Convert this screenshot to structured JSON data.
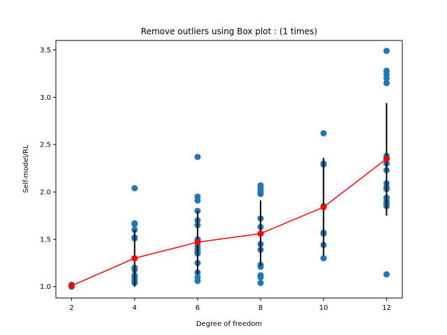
{
  "chart_data": {
    "type": "scatter",
    "title": "Remove outliers using Box plot : (1 times)",
    "xlabel": "Degree of freedom",
    "ylabel": "Self-model/RL",
    "xlim": [
      1.5,
      12.5
    ],
    "ylim": [
      0.88,
      3.6
    ],
    "x_ticks": [
      2,
      4,
      6,
      8,
      10,
      12
    ],
    "y_ticks": [
      1.0,
      1.5,
      2.0,
      2.5,
      3.0,
      3.5
    ],
    "grid": false,
    "scatter": [
      {
        "x": 2,
        "values": [
          1.0,
          1.01,
          1.02
        ]
      },
      {
        "x": 4,
        "values": [
          1.04,
          1.06,
          1.08,
          1.1,
          1.12,
          1.18,
          1.2,
          1.3,
          1.51,
          1.52,
          1.6,
          1.66,
          1.67,
          2.04
        ]
      },
      {
        "x": 6,
        "values": [
          1.06,
          1.1,
          1.15,
          1.25,
          1.35,
          1.37,
          1.4,
          1.43,
          1.47,
          1.5,
          1.65,
          1.7,
          1.8,
          1.91,
          1.95,
          2.37
        ]
      },
      {
        "x": 8,
        "values": [
          1.04,
          1.1,
          1.12,
          1.21,
          1.23,
          1.39,
          1.45,
          1.56,
          1.63,
          1.72,
          1.98,
          2.01,
          2.04,
          2.07
        ]
      },
      {
        "x": 10,
        "values": [
          1.3,
          1.44,
          1.56,
          1.57,
          1.85,
          2.29,
          2.3,
          2.62
        ]
      },
      {
        "x": 12,
        "values": [
          1.13,
          1.85,
          1.88,
          1.9,
          1.94,
          2.03,
          2.05,
          2.09,
          2.23,
          2.3,
          2.35,
          2.38,
          3.15,
          3.2,
          3.24,
          3.28,
          3.49
        ]
      }
    ],
    "mean_line": {
      "x": [
        2,
        4,
        6,
        8,
        10,
        12
      ],
      "values": [
        1.01,
        1.3,
        1.47,
        1.56,
        1.84,
        2.35
      ]
    },
    "error_bars": [
      {
        "x": 2,
        "low": 1.0,
        "high": 1.02
      },
      {
        "x": 4,
        "low": 1.0,
        "high": 1.6
      },
      {
        "x": 6,
        "low": 1.13,
        "high": 1.8
      },
      {
        "x": 8,
        "low": 1.22,
        "high": 1.91
      },
      {
        "x": 10,
        "low": 1.33,
        "high": 2.36
      },
      {
        "x": 12,
        "low": 1.75,
        "high": 2.94
      }
    ],
    "colors": {
      "scatter": "#1f77b4",
      "mean": "#ff0000",
      "error": "#000000"
    }
  }
}
